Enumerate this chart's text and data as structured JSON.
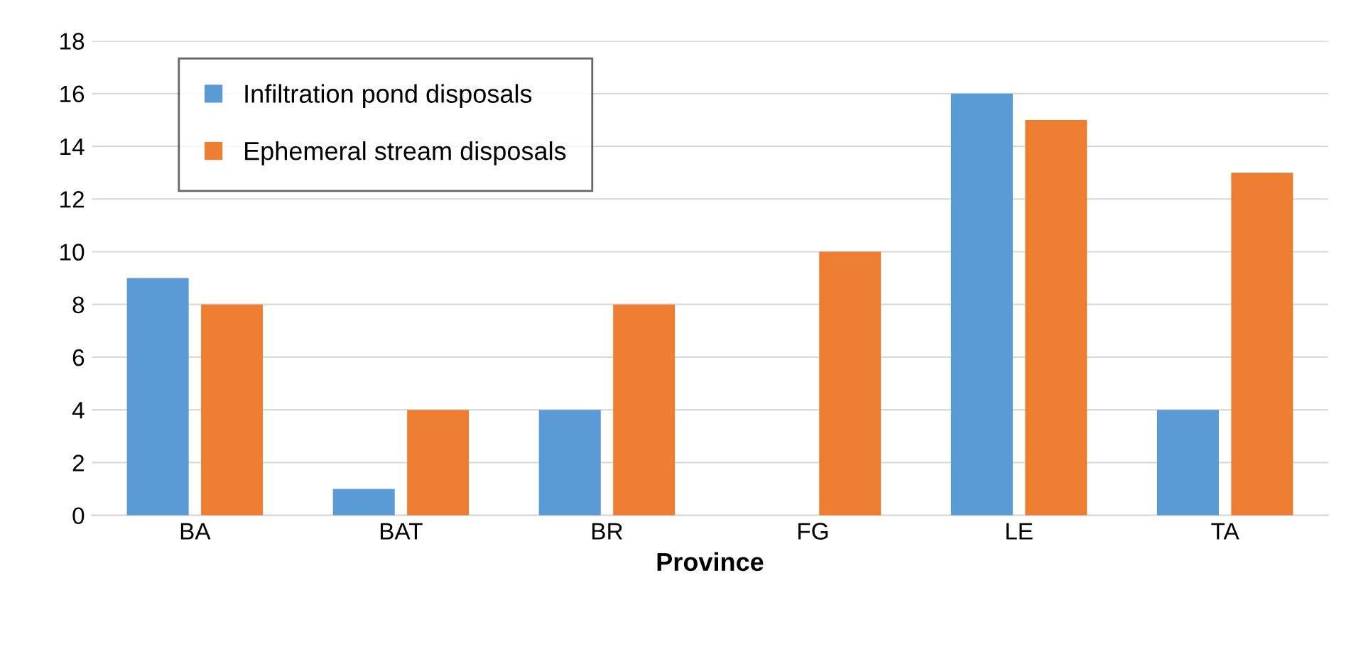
{
  "chart_data": {
    "type": "bar",
    "xlabel": "Province",
    "categories": [
      "BA",
      "BAT",
      "BR",
      "FG",
      "LE",
      "TA"
    ],
    "series": [
      {
        "name": "Infiltration pond disposals",
        "color": "#5b9bd5",
        "values": [
          9,
          1,
          4,
          0,
          16,
          4
        ]
      },
      {
        "name": "Ephemeral stream disposals",
        "color": "#ed7d31",
        "values": [
          8,
          4,
          8,
          10,
          15,
          13
        ]
      }
    ],
    "ylim": [
      0,
      18
    ],
    "yticks": [
      0,
      2,
      4,
      6,
      8,
      10,
      12,
      14,
      16,
      18
    ],
    "grid": "y",
    "legend": "top left"
  }
}
